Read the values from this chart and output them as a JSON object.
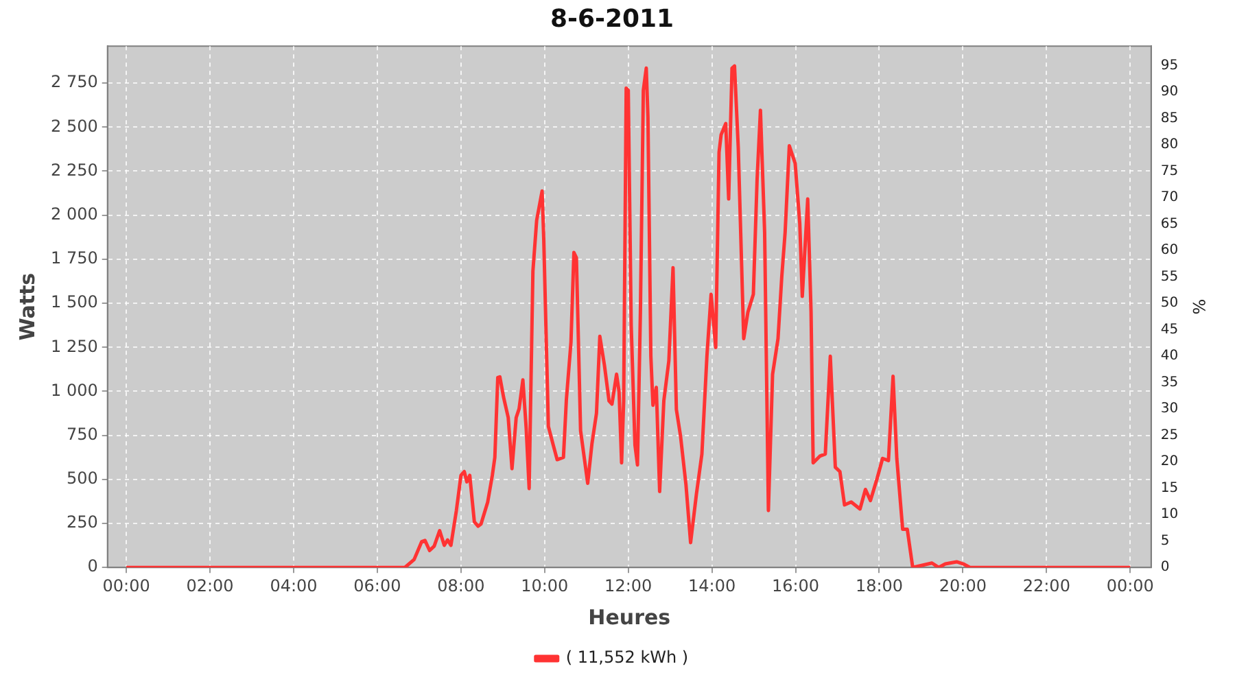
{
  "chart_data": {
    "type": "line",
    "title": "8-6-2011",
    "xlabel": "Heures",
    "ylabel": "Watts",
    "y2label": "%",
    "xlim": [
      -0.45,
      24.5
    ],
    "xticks": [
      {
        "value": 0,
        "label": "00:00"
      },
      {
        "value": 2,
        "label": "02:00"
      },
      {
        "value": 4,
        "label": "04:00"
      },
      {
        "value": 6,
        "label": "06:00"
      },
      {
        "value": 8,
        "label": "08:00"
      },
      {
        "value": 10,
        "label": "10:00"
      },
      {
        "value": 12,
        "label": "12:00"
      },
      {
        "value": 14,
        "label": "14:00"
      },
      {
        "value": 16,
        "label": "16:00"
      },
      {
        "value": 18,
        "label": "18:00"
      },
      {
        "value": 20,
        "label": "20:00"
      },
      {
        "value": 22,
        "label": "22:00"
      },
      {
        "value": 24,
        "label": "00:00"
      }
    ],
    "ylim": [
      0,
      2960
    ],
    "yticks": [
      0,
      250,
      500,
      750,
      {
        "value": 1000,
        "label": "1 000"
      },
      {
        "value": 1250,
        "label": "1 250"
      },
      {
        "value": 1500,
        "label": "1 500"
      },
      {
        "value": 1750,
        "label": "1 750"
      },
      {
        "value": 2000,
        "label": "2 000"
      },
      {
        "value": 2250,
        "label": "2 250"
      },
      {
        "value": 2500,
        "label": "2 500"
      },
      {
        "value": 2750,
        "label": "2 750"
      }
    ],
    "y2lim": [
      0,
      98.67
    ],
    "y2ticks": [
      0,
      5,
      10,
      15,
      20,
      25,
      30,
      35,
      40,
      45,
      50,
      55,
      60,
      65,
      70,
      75,
      80,
      85,
      90,
      95
    ],
    "grid": true,
    "legend": "bottom",
    "marker": "none",
    "line_style": "solid",
    "series": [
      {
        "name": "( 11,552 kWh )",
        "color": "#ff3333",
        "x": [
          0,
          6.66,
          6.88,
          7.06,
          7.14,
          7.25,
          7.36,
          7.49,
          7.6,
          7.68,
          7.76,
          7.89,
          8,
          8.08,
          8.14,
          8.21,
          8.32,
          8.41,
          8.48,
          8.64,
          8.75,
          8.81,
          8.88,
          8.93,
          9.02,
          9.13,
          9.22,
          9.32,
          9.39,
          9.48,
          9.56,
          9.63,
          9.72,
          9.81,
          9.94,
          9.98,
          10.09,
          10.2,
          10.3,
          10.45,
          10.52,
          10.63,
          10.7,
          10.76,
          10.86,
          11.03,
          11.13,
          11.24,
          11.32,
          11.43,
          11.54,
          11.61,
          11.72,
          11.78,
          11.84,
          11.89,
          11.95,
          12,
          12.07,
          12.16,
          12.22,
          12.29,
          12.36,
          12.43,
          12.47,
          12.54,
          12.59,
          12.67,
          12.75,
          12.85,
          12.97,
          13.07,
          13.15,
          13.25,
          13.38,
          13.49,
          13.63,
          13.76,
          13.88,
          13.98,
          14.09,
          14.17,
          14.22,
          14.33,
          14.4,
          14.48,
          14.54,
          14.63,
          14.76,
          14.86,
          14.99,
          15.08,
          15.16,
          15.26,
          15.35,
          15.45,
          15.58,
          15.67,
          15.75,
          15.85,
          15.99,
          16.1,
          16.16,
          16.24,
          16.29,
          16.37,
          16.42,
          16.58,
          16.71,
          16.83,
          16.95,
          17.06,
          17.17,
          17.33,
          17.54,
          17.67,
          17.79,
          17.95,
          18.08,
          18.22,
          18.33,
          18.42,
          18.56,
          18.67,
          18.8,
          19.26,
          19.42,
          19.58,
          19.85,
          20.01,
          20.17,
          24
        ],
        "values": [
          0,
          0,
          45,
          146,
          153,
          96,
          121,
          209,
          126,
          156,
          126,
          323,
          523,
          544,
          486,
          523,
          259,
          234,
          247,
          372,
          523,
          625,
          1078,
          1082,
          965,
          851,
          561,
          851,
          901,
          1065,
          788,
          448,
          1682,
          1971,
          2137,
          1858,
          801,
          700,
          612,
          625,
          952,
          1279,
          1788,
          1758,
          776,
          478,
          700,
          876,
          1312,
          1148,
          946,
          927,
          1097,
          997,
          594,
          946,
          2721,
          2709,
          1375,
          695,
          582,
          1450,
          2709,
          2835,
          2558,
          1199,
          921,
          1022,
          431,
          946,
          1173,
          1702,
          897,
          745,
          468,
          141,
          418,
          644,
          1199,
          1551,
          1249,
          2357,
          2457,
          2520,
          2092,
          2835,
          2847,
          2381,
          1299,
          1450,
          1551,
          2205,
          2596,
          1903,
          323,
          1097,
          1299,
          1652,
          1903,
          2394,
          2294,
          1954,
          1539,
          1878,
          2092,
          1450,
          594,
          632,
          644,
          1199,
          569,
          544,
          355,
          372,
          332,
          443,
          380,
          506,
          619,
          607,
          1085,
          619,
          217,
          217,
          0,
          25,
          0,
          20,
          32,
          20,
          0,
          0
        ]
      }
    ]
  }
}
